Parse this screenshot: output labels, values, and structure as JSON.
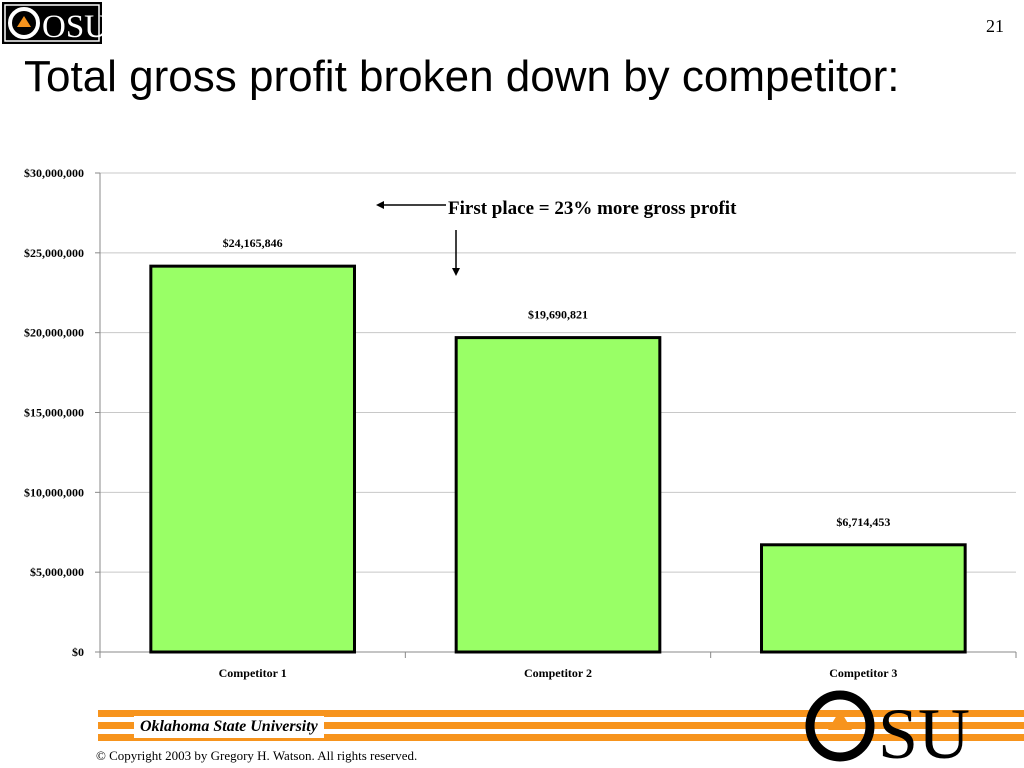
{
  "slide": {
    "number": "21",
    "title": "Total gross profit broken down by competitor:",
    "logo_text": "OSU",
    "footer_university": "Oklahoma State University",
    "copyright": "© Copyright 2003 by Gregory H. Watson. All rights reserved."
  },
  "colors": {
    "bar_fill": "#99ff66",
    "bar_stroke": "#000000",
    "accent_orange": "#f7941d",
    "gridline": "#c8c8c8"
  },
  "chart_data": {
    "type": "bar",
    "title": "",
    "xlabel": "",
    "ylabel": "",
    "categories": [
      "Competitor 1",
      "Competitor 2",
      "Competitor 3"
    ],
    "values": [
      24165846,
      19690821,
      6714453
    ],
    "value_labels": [
      "$24,165,846",
      "$19,690,821",
      "$6,714,453"
    ],
    "ylim": [
      0,
      30000000
    ],
    "yticks": [
      0,
      5000000,
      10000000,
      15000000,
      20000000,
      25000000,
      30000000
    ],
    "ytick_labels": [
      "$0",
      "$5,000,000",
      "$10,000,000",
      "$15,000,000",
      "$20,000,000",
      "$25,000,000",
      "$30,000,000"
    ],
    "grid": true,
    "annotation": "First place = 23% more gross profit"
  }
}
